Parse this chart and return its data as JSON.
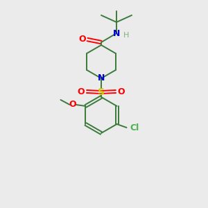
{
  "bg_color": "#ebebeb",
  "bond_color": "#3a7a3a",
  "atom_colors": {
    "O": "#ff0000",
    "N": "#0000cc",
    "S": "#cccc00",
    "Cl": "#4caf50",
    "H": "#80b080",
    "C": "#3a7a3a"
  },
  "figsize": [
    3.0,
    3.0
  ],
  "dpi": 100
}
